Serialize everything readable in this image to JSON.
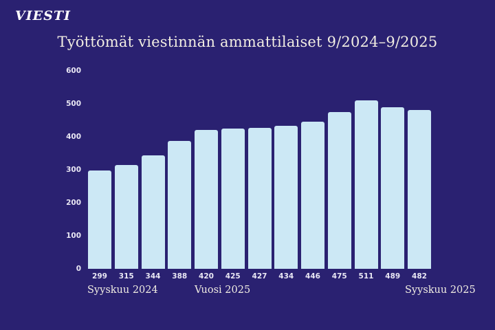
{
  "logo": {
    "text": "VIESTI"
  },
  "chart_data": {
    "type": "bar",
    "title": "Työttömät viestinnän ammattilaiset 9/2024–9/2025",
    "values": [
      299,
      315,
      344,
      388,
      420,
      425,
      427,
      434,
      446,
      475,
      511,
      489,
      482
    ],
    "data_labels": [
      "299",
      "315",
      "344",
      "388",
      "420",
      "425",
      "427",
      "434",
      "446",
      "475",
      "511",
      "489",
      "482"
    ],
    "y_ticks": [
      0,
      100,
      200,
      300,
      400,
      500,
      600
    ],
    "ylim": [
      0,
      600
    ],
    "xlabel": "",
    "ylabel": "",
    "grid": false,
    "legend": false,
    "x_annotations": [
      {
        "label": "Syyskuu 2024",
        "aligns_with_bar": 1
      },
      {
        "label": "Vuosi 2025",
        "aligns_with_bar": 5
      },
      {
        "label": "Syyskuu 2025",
        "aligns_with_bar": 13
      }
    ],
    "colors": {
      "background": "#2a2171",
      "bar": "#cce8f5",
      "title_text": "#f1ede2",
      "axis_text": "#e9e7f4"
    }
  }
}
